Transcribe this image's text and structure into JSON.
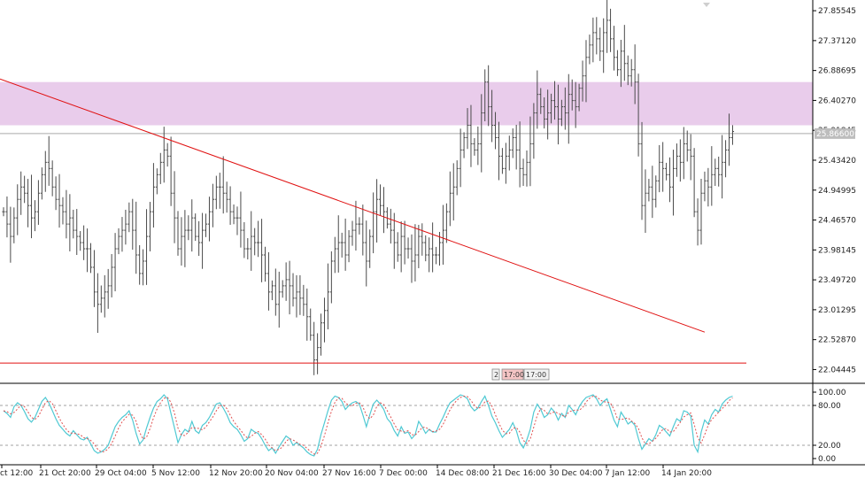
{
  "chart_data": [
    {
      "type": "ohlc",
      "ylim": [
        21.85,
        28.0
      ],
      "grid": false,
      "y_ticks": [
        "27.85545",
        "27.37120",
        "26.88695",
        "26.40270",
        "25.91845",
        "25.43420",
        "24.94995",
        "24.46570",
        "23.98145",
        "23.49720",
        "23.01295",
        "22.52870",
        "22.04445"
      ],
      "current_price": "25.86600",
      "time_stamps": [
        "2",
        "17:00",
        "17:00"
      ],
      "zone": {
        "from": 26.0,
        "to": 26.7
      },
      "support_level": 22.15,
      "trendline": {
        "from_bar": 0,
        "from_price": 26.75,
        "to_bar": 201,
        "to_price": 22.65
      },
      "close": [
        24.6,
        24.4,
        24.2,
        24.5,
        24.8,
        25.0,
        24.9,
        24.7,
        24.5,
        24.6,
        24.9,
        25.2,
        25.4,
        25.3,
        25.0,
        24.8,
        24.7,
        24.6,
        24.4,
        24.5,
        24.3,
        24.2,
        24.1,
        24.0,
        24.0,
        23.7,
        23.3,
        23.1,
        23.2,
        23.3,
        23.4,
        23.7,
        24.0,
        24.2,
        24.3,
        24.4,
        24.6,
        24.3,
        23.9,
        23.6,
        23.8,
        24.2,
        24.6,
        25.0,
        25.2,
        25.4,
        25.6,
        25.5,
        24.9,
        24.5,
        24.0,
        24.2,
        24.3,
        24.3,
        24.5,
        24.2,
        24.1,
        24.3,
        24.4,
        24.6,
        24.8,
        25.0,
        25.0,
        24.9,
        24.8,
        24.6,
        24.5,
        24.5,
        24.3,
        24.0,
        24.0,
        24.2,
        24.1,
        24.1,
        23.9,
        23.6,
        23.3,
        23.4,
        23.1,
        23.3,
        23.4,
        23.5,
        23.4,
        23.2,
        23.3,
        23.2,
        23.1,
        22.9,
        22.6,
        22.2,
        22.4,
        22.8,
        23.0,
        23.3,
        23.8,
        24.0,
        24.1,
        24.1,
        23.9,
        24.2,
        24.3,
        24.4,
        24.4,
        24.1,
        23.8,
        24.2,
        24.6,
        24.8,
        24.7,
        24.6,
        24.4,
        24.3,
        24.1,
        23.9,
        24.2,
        24.0,
        24.0,
        23.8,
        23.9,
        24.2,
        24.1,
        23.9,
        24.0,
        23.9,
        23.9,
        24.1,
        24.3,
        24.6,
        24.9,
        25.0,
        25.3,
        25.6,
        25.8,
        26.0,
        25.7,
        25.6,
        25.7,
        26.2,
        26.7,
        26.3,
        26.0,
        25.8,
        25.5,
        25.3,
        25.5,
        25.6,
        25.8,
        25.6,
        25.3,
        25.2,
        25.4,
        25.7,
        26.2,
        26.5,
        26.3,
        26.1,
        26.2,
        26.4,
        26.3,
        26.1,
        26.3,
        26.2,
        26.5,
        26.4,
        26.3,
        26.6,
        26.8,
        27.1,
        27.3,
        27.5,
        27.4,
        27.2,
        27.5,
        27.7,
        27.4,
        27.1,
        26.9,
        27.2,
        27.0,
        26.8,
        26.9,
        26.7,
        25.7,
        24.7,
        24.9,
        25.0,
        24.8,
        25.1,
        25.4,
        25.3,
        25.2,
        25.0,
        25.3,
        25.5,
        25.4,
        25.7,
        25.6,
        25.5,
        24.6,
        24.3,
        24.9,
        25.1,
        25.0,
        25.2,
        25.3,
        25.2,
        25.4,
        25.6,
        25.8,
        25.9
      ]
    },
    {
      "type": "line",
      "ylim": [
        0,
        100
      ],
      "y_ticks": [
        "100.00",
        "80.00",
        "20.00",
        "0.00"
      ],
      "levels": [
        80,
        20
      ],
      "series": [
        {
          "key": "main",
          "values": [
            72,
            68,
            62,
            78,
            84,
            80,
            71,
            60,
            55,
            62,
            74,
            86,
            92,
            84,
            72,
            60,
            50,
            44,
            38,
            34,
            42,
            36,
            30,
            28,
            32,
            22,
            12,
            8,
            10,
            14,
            20,
            34,
            48,
            56,
            62,
            66,
            72,
            58,
            38,
            22,
            28,
            46,
            62,
            76,
            86,
            90,
            96,
            90,
            68,
            46,
            24,
            36,
            44,
            40,
            56,
            42,
            38,
            50,
            54,
            62,
            72,
            82,
            84,
            76,
            66,
            54,
            48,
            44,
            36,
            26,
            30,
            44,
            40,
            38,
            30,
            20,
            12,
            16,
            8,
            18,
            26,
            34,
            30,
            20,
            24,
            20,
            16,
            10,
            6,
            4,
            14,
            36,
            54,
            72,
            88,
            94,
            92,
            86,
            74,
            80,
            84,
            86,
            82,
            66,
            48,
            66,
            82,
            88,
            82,
            74,
            60,
            54,
            42,
            34,
            48,
            38,
            40,
            30,
            36,
            56,
            48,
            38,
            44,
            40,
            40,
            52,
            62,
            74,
            84,
            88,
            92,
            96,
            94,
            90,
            78,
            72,
            76,
            86,
            94,
            80,
            64,
            54,
            42,
            32,
            38,
            44,
            54,
            42,
            24,
            16,
            28,
            44,
            70,
            82,
            74,
            62,
            66,
            76,
            70,
            58,
            68,
            62,
            80,
            74,
            66,
            78,
            86,
            92,
            94,
            96,
            90,
            80,
            86,
            90,
            74,
            58,
            48,
            70,
            62,
            52,
            56,
            50,
            30,
            14,
            22,
            30,
            26,
            36,
            50,
            46,
            40,
            34,
            48,
            60,
            56,
            72,
            70,
            64,
            20,
            10,
            40,
            58,
            52,
            66,
            74,
            70,
            82,
            88,
            92,
            94
          ]
        }
      ]
    }
  ],
  "x_labels": [
    "ct 12:00",
    "21 Oct 20:00",
    "29 Oct 04:00",
    "5 Nov 12:00",
    "12 Nov 20:00",
    "20 Nov 04:00",
    "27 Nov 16:00",
    "7 Dec 00:00",
    "14 Dec 08:00",
    "21 Dec 16:00",
    "30 Dec 04:00",
    "7 Jan 12:00",
    "14 Jan 20:00"
  ],
  "colors": {
    "bars": "#4a4a4a",
    "zone": "#e9cceb",
    "trend": "#e01010",
    "support": "#e01010",
    "current_line": "#aaaaaa",
    "current_badge": "#bdbdbd",
    "osc_main": "#4fc9d3",
    "osc_signal": "#e05050",
    "axis": "#000000",
    "level_line": "#a0a0a0"
  }
}
